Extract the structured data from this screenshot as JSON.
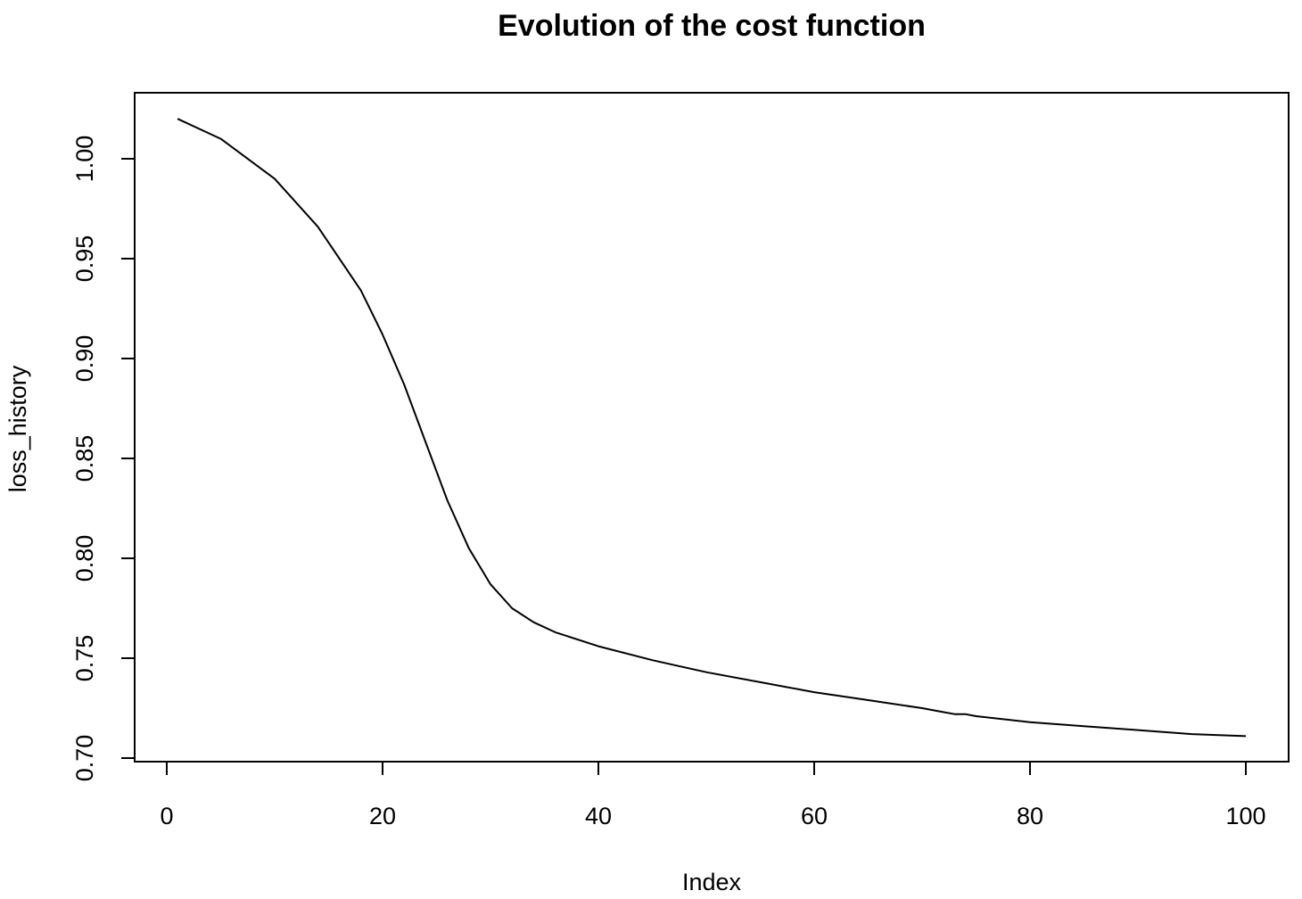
{
  "chart_data": {
    "type": "line",
    "title": "Evolution of the cost function",
    "xlabel": "Index",
    "ylabel": "loss_history",
    "xlim": [
      0,
      100
    ],
    "ylim": [
      0.7,
      1.0
    ],
    "x_ticks": [
      0,
      20,
      40,
      60,
      80,
      100
    ],
    "x_tick_labels": [
      "0",
      "20",
      "40",
      "60",
      "80",
      "100"
    ],
    "y_ticks": [
      0.7,
      0.75,
      0.8,
      0.85,
      0.9,
      0.95,
      1.0
    ],
    "y_tick_labels": [
      "0.70",
      "0.75",
      "0.80",
      "0.85",
      "0.90",
      "0.95",
      "1.00"
    ],
    "grid": false,
    "line_color": "#000000",
    "series": [
      {
        "x": [
          1,
          5,
          10,
          14,
          18,
          20,
          22,
          24,
          26,
          28,
          30,
          32,
          34,
          36,
          40,
          45,
          50,
          55,
          60,
          65,
          70,
          72,
          73,
          74,
          75,
          80,
          85,
          90,
          95,
          100
        ],
        "values": [
          1.02,
          1.01,
          0.99,
          0.966,
          0.934,
          0.912,
          0.887,
          0.858,
          0.829,
          0.805,
          0.787,
          0.775,
          0.768,
          0.763,
          0.756,
          0.749,
          0.743,
          0.738,
          0.733,
          0.729,
          0.725,
          0.723,
          0.722,
          0.722,
          0.721,
          0.718,
          0.716,
          0.714,
          0.712,
          0.711
        ]
      }
    ]
  }
}
